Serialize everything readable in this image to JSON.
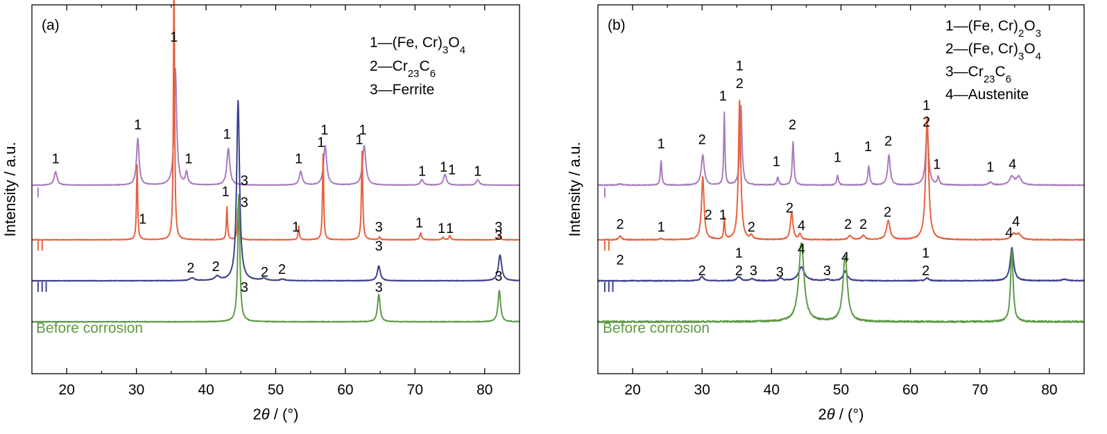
{
  "colors": {
    "I": "#a87bbd",
    "II": "#e8603a",
    "III": "#3b3f8c",
    "before": "#5c9a45",
    "axis": "#000000"
  },
  "chart_data": [
    {
      "type": "line",
      "panel_label": "(a)",
      "xlabel": "2θ / (°)",
      "ylabel": "Intensity / a.u.",
      "xlim": [
        15,
        85
      ],
      "xticks": [
        20,
        30,
        40,
        50,
        60,
        70,
        80
      ],
      "legend": [
        "1—(Fe, Cr)3O4",
        "2—Cr23C6",
        "3—Ferrite"
      ],
      "series": [
        {
          "name": "I",
          "color_key": "I",
          "baseline": 1.0,
          "peaks": [
            [
              18.4,
              0.1,
              0.25
            ],
            [
              30.2,
              0.34,
              0.22
            ],
            [
              35.6,
              0.85,
              0.22
            ],
            [
              37.2,
              0.09,
              0.2
            ],
            [
              43.2,
              0.27,
              0.25
            ],
            [
              53.6,
              0.1,
              0.25
            ],
            [
              57.1,
              0.29,
              0.26
            ],
            [
              62.7,
              0.29,
              0.28
            ],
            [
              71.0,
              0.04,
              0.25
            ],
            [
              74.3,
              0.08,
              0.25
            ],
            [
              79.0,
              0.04,
              0.25
            ]
          ]
        },
        {
          "name": "II",
          "color_key": "II",
          "baseline": 0.6,
          "peaks": [
            [
              30.1,
              0.55,
              0.1
            ],
            [
              35.4,
              1.95,
              0.1
            ],
            [
              43.0,
              0.24,
              0.1
            ],
            [
              44.6,
              0.24,
              0.12
            ],
            [
              53.3,
              0.1,
              0.1
            ],
            [
              56.8,
              0.63,
              0.1
            ],
            [
              62.4,
              0.65,
              0.11
            ],
            [
              64.9,
              0.02,
              0.15
            ],
            [
              70.8,
              0.05,
              0.15
            ],
            [
              74.0,
              0.02,
              0.15
            ],
            [
              75.0,
              0.03,
              0.15
            ],
            [
              82.1,
              0.03,
              0.15
            ]
          ]
        },
        {
          "name": "III",
          "color_key": "III",
          "baseline": 0.3,
          "peaks": [
            [
              38.0,
              0.02,
              0.4
            ],
            [
              41.6,
              0.03,
              0.4
            ],
            [
              44.6,
              1.32,
              0.25
            ],
            [
              48.3,
              0.015,
              0.4
            ],
            [
              51.0,
              0.01,
              0.4
            ],
            [
              64.8,
              0.11,
              0.25
            ],
            [
              82.2,
              0.19,
              0.28
            ]
          ]
        },
        {
          "name": "Before corrosion",
          "color_key": "before",
          "baseline": 0.0,
          "peaks": [
            [
              44.7,
              0.93,
              0.18
            ],
            [
              64.8,
              0.2,
              0.22
            ],
            [
              82.1,
              0.23,
              0.22
            ]
          ]
        }
      ],
      "peak_labels": [
        {
          "text": "1",
          "x": 18.4,
          "y": 1.16
        },
        {
          "text": "1",
          "x": 30.2,
          "y": 1.41
        },
        {
          "text": "1",
          "x": 35.4,
          "y": 2.05
        },
        {
          "text": "1",
          "x": 37.5,
          "y": 1.16
        },
        {
          "text": "1",
          "x": 43.0,
          "y": 1.34
        },
        {
          "text": "1",
          "x": 53.3,
          "y": 1.16
        },
        {
          "text": "1",
          "x": 57.0,
          "y": 1.37
        },
        {
          "text": "1",
          "x": 62.5,
          "y": 1.37
        },
        {
          "text": "1",
          "x": 71.0,
          "y": 1.07
        },
        {
          "text": "1",
          "x": 74.1,
          "y": 1.1
        },
        {
          "text": "1",
          "x": 75.3,
          "y": 1.08
        },
        {
          "text": "1",
          "x": 79.0,
          "y": 1.07
        },
        {
          "text": "1",
          "x": 30.9,
          "y": 0.72
        },
        {
          "text": "1",
          "x": 42.8,
          "y": 0.92
        },
        {
          "text": "3",
          "x": 45.5,
          "y": 1.0
        },
        {
          "text": "1",
          "x": 52.9,
          "y": 0.66
        },
        {
          "text": "1",
          "x": 56.5,
          "y": 1.28
        },
        {
          "text": "1",
          "x": 62.0,
          "y": 1.3
        },
        {
          "text": "3",
          "x": 64.8,
          "y": 0.66
        },
        {
          "text": "1",
          "x": 70.6,
          "y": 0.69
        },
        {
          "text": "1",
          "x": 73.8,
          "y": 0.65
        },
        {
          "text": "1",
          "x": 75.0,
          "y": 0.65
        },
        {
          "text": "3",
          "x": 82.0,
          "y": 0.66
        },
        {
          "text": "2",
          "x": 37.8,
          "y": 0.36
        },
        {
          "text": "2",
          "x": 41.4,
          "y": 0.37
        },
        {
          "text": "3",
          "x": 45.5,
          "y": 0.84
        },
        {
          "text": "2",
          "x": 48.4,
          "y": 0.33
        },
        {
          "text": "2",
          "x": 50.9,
          "y": 0.35
        },
        {
          "text": "3",
          "x": 64.8,
          "y": 0.52
        },
        {
          "text": "3",
          "x": 82.0,
          "y": 0.6
        },
        {
          "text": "3",
          "x": 45.5,
          "y": 0.22
        },
        {
          "text": "3",
          "x": 64.8,
          "y": 0.22
        },
        {
          "text": "3",
          "x": 82.0,
          "y": 0.3
        }
      ],
      "series_labels": [
        {
          "text": "I",
          "color_key": "I",
          "x": 15.6,
          "y": 0.91
        },
        {
          "text": "II",
          "color_key": "II",
          "x": 15.6,
          "y": 0.52
        },
        {
          "text": "III",
          "color_key": "III",
          "x": 15.6,
          "y": 0.22
        },
        {
          "text": "Before corrosion",
          "color_key": "before",
          "x": 15.6,
          "y": -0.08
        }
      ]
    },
    {
      "type": "line",
      "panel_label": "(b)",
      "xlabel": "2θ / (°)",
      "ylabel": "Intensity / a.u.",
      "xlim": [
        15,
        85
      ],
      "xticks": [
        20,
        30,
        40,
        50,
        60,
        70,
        80
      ],
      "legend": [
        "1—(Fe, Cr)2O3",
        "2—(Fe, Cr)3O4",
        "3—Cr23C6",
        "4—Austenite"
      ],
      "series": [
        {
          "name": "I",
          "color_key": "I",
          "baseline": 1.0,
          "peaks": [
            [
              18.2,
              0.01,
              0.3
            ],
            [
              24.1,
              0.18,
              0.12
            ],
            [
              30.1,
              0.22,
              0.25
            ],
            [
              33.2,
              0.53,
              0.1
            ],
            [
              35.6,
              0.58,
              0.18
            ],
            [
              40.9,
              0.06,
              0.15
            ],
            [
              43.1,
              0.32,
              0.14
            ],
            [
              49.5,
              0.07,
              0.15
            ],
            [
              54.0,
              0.14,
              0.15
            ],
            [
              56.9,
              0.22,
              0.22
            ],
            [
              62.4,
              0.41,
              0.25
            ],
            [
              64.0,
              0.06,
              0.15
            ],
            [
              71.5,
              0.02,
              0.3
            ],
            [
              74.6,
              0.06,
              0.4
            ],
            [
              75.6,
              0.06,
              0.4
            ]
          ]
        },
        {
          "name": "II",
          "color_key": "II",
          "baseline": 0.6,
          "peaks": [
            [
              18.2,
              0.03,
              0.2
            ],
            [
              24.1,
              0.01,
              0.2
            ],
            [
              30.1,
              0.46,
              0.22
            ],
            [
              33.2,
              0.15,
              0.1
            ],
            [
              35.4,
              1.02,
              0.2
            ],
            [
              37.1,
              0.03,
              0.2
            ],
            [
              42.9,
              0.2,
              0.22
            ],
            [
              44.1,
              0.04,
              0.2
            ],
            [
              51.3,
              0.03,
              0.3
            ],
            [
              53.2,
              0.03,
              0.3
            ],
            [
              56.8,
              0.14,
              0.3
            ],
            [
              62.4,
              0.9,
              0.25
            ],
            [
              74.8,
              0.04,
              0.4
            ],
            [
              75.6,
              0.04,
              0.4
            ]
          ]
        },
        {
          "name": "III",
          "color_key": "III",
          "baseline": 0.3,
          "peaks": [
            [
              30.0,
              0.03,
              0.3
            ],
            [
              35.3,
              0.03,
              0.3
            ],
            [
              37.2,
              0.015,
              0.3
            ],
            [
              41.3,
              0.02,
              0.3
            ],
            [
              44.3,
              0.1,
              0.5
            ],
            [
              48.0,
              0.01,
              0.3
            ],
            [
              50.6,
              0.07,
              0.35
            ],
            [
              62.4,
              0.02,
              0.3
            ],
            [
              74.6,
              0.24,
              0.3
            ],
            [
              82.2,
              0.01,
              0.5
            ]
          ]
        },
        {
          "name": "Before corrosion",
          "color_key": "before",
          "baseline": 0.0,
          "peaks": [
            [
              44.3,
              0.58,
              0.45
            ],
            [
              50.6,
              0.48,
              0.38
            ],
            [
              74.6,
              0.53,
              0.22
            ]
          ]
        }
      ],
      "peak_labels": [
        {
          "text": "1",
          "x": 24.1,
          "y": 1.27
        },
        {
          "text": "2",
          "x": 30.0,
          "y": 1.3
        },
        {
          "text": "1",
          "x": 33.0,
          "y": 1.62
        },
        {
          "text": "1",
          "x": 35.4,
          "y": 1.84
        },
        {
          "text": "2",
          "x": 35.4,
          "y": 1.71
        },
        {
          "text": "1",
          "x": 40.7,
          "y": 1.14
        },
        {
          "text": "2",
          "x": 43.0,
          "y": 1.41
        },
        {
          "text": "1",
          "x": 49.5,
          "y": 1.17
        },
        {
          "text": "1",
          "x": 53.9,
          "y": 1.25
        },
        {
          "text": "2",
          "x": 56.8,
          "y": 1.29
        },
        {
          "text": "1",
          "x": 62.3,
          "y": 1.55
        },
        {
          "text": "2",
          "x": 62.3,
          "y": 1.43
        },
        {
          "text": "1",
          "x": 63.8,
          "y": 1.12
        },
        {
          "text": "1",
          "x": 71.5,
          "y": 1.1
        },
        {
          "text": "4",
          "x": 74.7,
          "y": 1.12
        },
        {
          "text": "2",
          "x": 18.2,
          "y": 0.68
        },
        {
          "text": "1",
          "x": 24.1,
          "y": 0.66
        },
        {
          "text": "2",
          "x": 30.9,
          "y": 0.75
        },
        {
          "text": "1",
          "x": 33.0,
          "y": 0.75
        },
        {
          "text": "2",
          "x": 37.1,
          "y": 0.66
        },
        {
          "text": "2",
          "x": 42.6,
          "y": 0.8
        },
        {
          "text": "4",
          "x": 44.3,
          "y": 0.67
        },
        {
          "text": "2",
          "x": 51.0,
          "y": 0.68
        },
        {
          "text": "2",
          "x": 53.2,
          "y": 0.68
        },
        {
          "text": "2",
          "x": 56.7,
          "y": 0.77
        },
        {
          "text": "4",
          "x": 75.2,
          "y": 0.7
        },
        {
          "text": "2",
          "x": 18.2,
          "y": 0.42
        },
        {
          "text": "2",
          "x": 30.0,
          "y": 0.34
        },
        {
          "text": "1",
          "x": 35.3,
          "y": 0.47
        },
        {
          "text": "2",
          "x": 35.3,
          "y": 0.34
        },
        {
          "text": "3",
          "x": 37.4,
          "y": 0.34
        },
        {
          "text": "3",
          "x": 41.2,
          "y": 0.33
        },
        {
          "text": "4",
          "x": 44.3,
          "y": 0.5
        },
        {
          "text": "3",
          "x": 48.0,
          "y": 0.34
        },
        {
          "text": "4",
          "x": 50.6,
          "y": 0.44
        },
        {
          "text": "1",
          "x": 62.2,
          "y": 0.47
        },
        {
          "text": "2",
          "x": 62.2,
          "y": 0.34
        },
        {
          "text": "4",
          "x": 74.2,
          "y": 0.62
        }
      ],
      "series_labels": [
        {
          "text": "I",
          "color_key": "I",
          "x": 15.7,
          "y": 0.91
        },
        {
          "text": "II",
          "color_key": "II",
          "x": 15.7,
          "y": 0.52
        },
        {
          "text": "III",
          "color_key": "III",
          "x": 15.7,
          "y": 0.22
        },
        {
          "text": "Before corrosion",
          "color_key": "before",
          "x": 15.7,
          "y": -0.08
        }
      ]
    }
  ]
}
